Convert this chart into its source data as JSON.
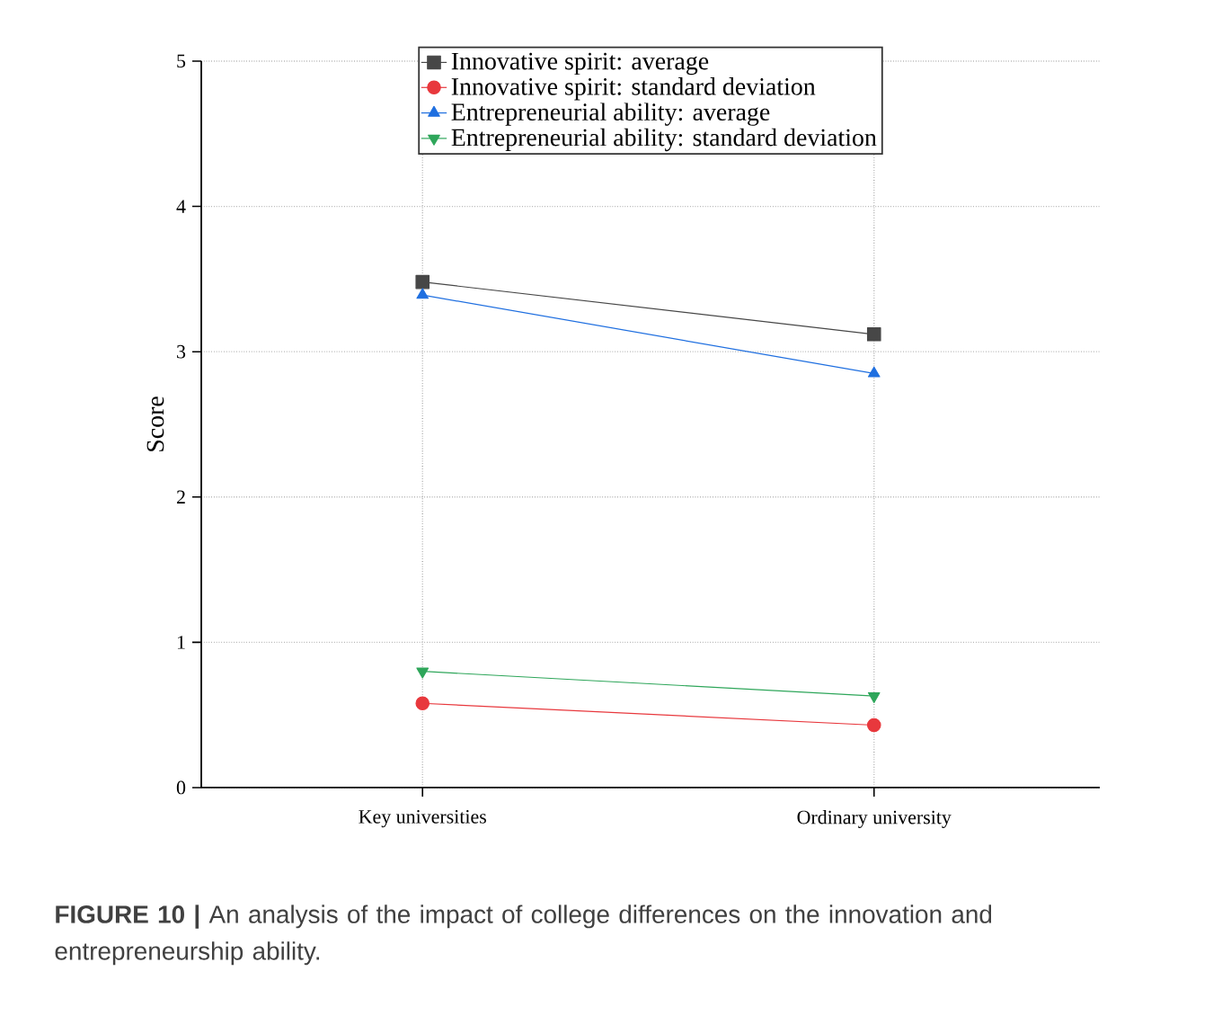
{
  "chart_data": {
    "type": "line",
    "categories": [
      "Key universities",
      "Ordinary university"
    ],
    "ylabel": "Score",
    "ylim": [
      0,
      5
    ],
    "yticks": [
      0,
      1,
      2,
      3,
      4,
      5
    ],
    "grid": true,
    "legend": "top",
    "series": [
      {
        "name": "Innovative spirit: average",
        "color": "#474747",
        "marker": "square",
        "values": [
          3.48,
          3.12
        ]
      },
      {
        "name": "Innovative spirit: standard deviation",
        "color": "#e8383d",
        "marker": "circle",
        "values": [
          0.58,
          0.43
        ]
      },
      {
        "name": "Entrepreneurial ability: average",
        "color": "#1f6fe0",
        "marker": "triangle",
        "values": [
          3.39,
          2.85
        ]
      },
      {
        "name": "Entrepreneurial ability: standard deviation",
        "color": "#2ea65a",
        "marker": "triangle down",
        "values": [
          0.8,
          0.63
        ]
      }
    ],
    "annotations": [
      "**FIGURE 10 |** An analysis of the impact of college differences on the innovation and entrepreneurship ability."
    ]
  }
}
